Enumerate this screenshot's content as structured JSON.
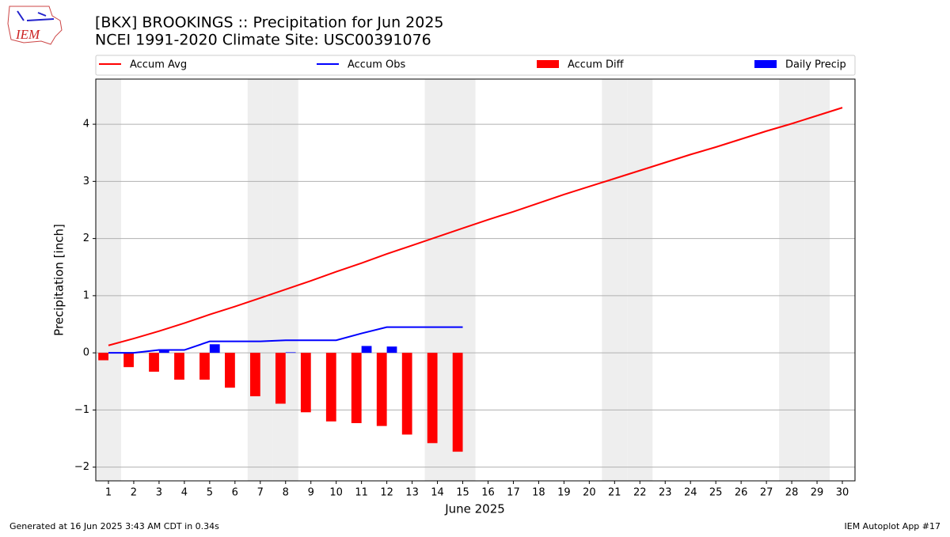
{
  "logo_text": "IEM",
  "footer_left": "Generated at 16 Jun 2025 3:43 AM CDT in 0.34s",
  "footer_right": "IEM Autoplot App #17",
  "chart_data": {
    "type": "combo",
    "title": "[BKX] BROOKINGS :: Precipitation for Jun 2025",
    "subtitle": "NCEI 1991-2020 Climate Site: USC00391076",
    "x_label": "June 2025",
    "y_label": "Precipitation [inch]",
    "x": [
      1,
      2,
      3,
      4,
      5,
      6,
      7,
      8,
      9,
      10,
      11,
      12,
      13,
      14,
      15,
      16,
      17,
      18,
      19,
      20,
      21,
      22,
      23,
      24,
      25,
      26,
      27,
      28,
      29,
      30
    ],
    "xticks": [
      1,
      2,
      3,
      4,
      5,
      6,
      7,
      8,
      9,
      10,
      11,
      12,
      13,
      14,
      15,
      16,
      17,
      18,
      19,
      20,
      21,
      22,
      23,
      24,
      25,
      26,
      27,
      28,
      29,
      30
    ],
    "xlim": [
      0.5,
      30.5
    ],
    "ylim": [
      -2.24,
      4.79
    ],
    "yticks": [
      {
        "value": -2,
        "label": "−2"
      },
      {
        "value": -1,
        "label": "−1"
      },
      0,
      1,
      2,
      3,
      4
    ],
    "grid": true,
    "weekend_days": [
      1,
      7,
      8,
      14,
      15,
      21,
      22,
      28,
      29
    ],
    "series": [
      {
        "name": "Accum Avg",
        "kind": "line",
        "color": "#ff0000",
        "values": [
          0.13,
          0.25,
          0.38,
          0.52,
          0.67,
          0.81,
          0.96,
          1.11,
          1.26,
          1.42,
          1.57,
          1.73,
          1.88,
          2.03,
          2.18,
          2.33,
          2.47,
          2.62,
          2.77,
          2.91,
          3.05,
          3.19,
          3.33,
          3.47,
          3.6,
          3.74,
          3.88,
          4.01,
          4.15,
          4.29
        ]
      },
      {
        "name": "Accum Obs",
        "kind": "line",
        "color": "#0000ff",
        "values": [
          0,
          0,
          0.05,
          0.05,
          0.2,
          0.2,
          0.2,
          0.22,
          0.22,
          0.22,
          0.34,
          0.45,
          0.45,
          0.45,
          0.45,
          null,
          null,
          null,
          null,
          null,
          null,
          null,
          null,
          null,
          null,
          null,
          null,
          null,
          null,
          null
        ]
      },
      {
        "name": "Accum Diff",
        "kind": "bar",
        "color": "#ff0000",
        "values": [
          -0.13,
          -0.25,
          -0.33,
          -0.47,
          -0.47,
          -0.61,
          -0.76,
          -0.89,
          -1.04,
          -1.2,
          -1.23,
          -1.28,
          -1.43,
          -1.58,
          -1.73,
          null,
          null,
          null,
          null,
          null,
          null,
          null,
          null,
          null,
          null,
          null,
          null,
          null,
          null,
          null
        ]
      },
      {
        "name": "Daily Precip",
        "kind": "bar",
        "color": "#0000ff",
        "values": [
          0,
          0,
          0.05,
          0,
          0.15,
          0,
          0,
          0.01,
          0,
          0,
          0.12,
          0.11,
          0,
          0,
          0,
          null,
          null,
          null,
          null,
          null,
          null,
          null,
          null,
          null,
          null,
          null,
          null,
          null,
          null,
          null
        ]
      }
    ]
  }
}
